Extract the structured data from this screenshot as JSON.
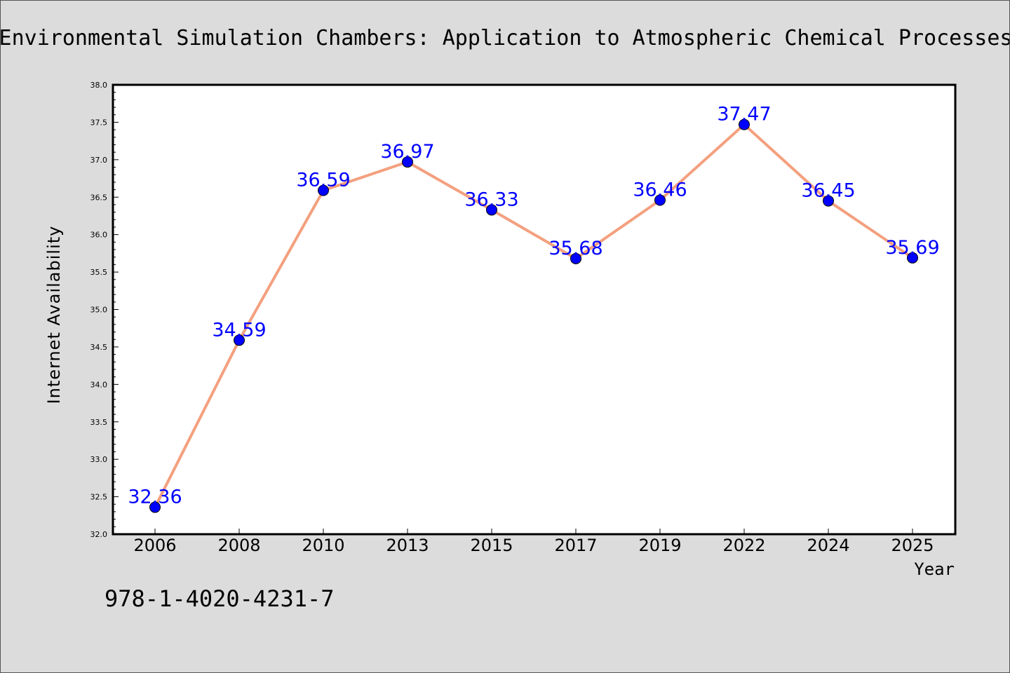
{
  "footer": {
    "isbn": "978-1-4020-4231-7"
  },
  "colors": {
    "background": "#dcdcdc",
    "plot_background": "#ffffff",
    "line": "#f4a07f",
    "marker": "#0000ff",
    "data_label": "#0000ff"
  },
  "chart_data": {
    "type": "line",
    "title": "Environmental Simulation Chambers: Application to Atmospheric Chemical Processes",
    "xlabel": "Year",
    "ylabel": "Internet Availability",
    "categories": [
      "2006",
      "2008",
      "2010",
      "2013",
      "2015",
      "2017",
      "2019",
      "2022",
      "2024",
      "2025"
    ],
    "series": [
      {
        "values": [
          32.36,
          34.59,
          36.59,
          36.97,
          36.33,
          35.68,
          36.46,
          37.47,
          36.45,
          35.69
        ]
      }
    ],
    "data_labels": [
      "32.36",
      "34.59",
      "36.59",
      "36.97",
      "36.33",
      "35.68",
      "36.46",
      "37.47",
      "36.45",
      "35.69"
    ],
    "ylim": [
      32.0,
      38.0
    ],
    "yticks": [
      "32.0",
      "32.5",
      "33.0",
      "33.5",
      "34.0",
      "34.5",
      "35.0",
      "35.5",
      "36.0",
      "36.5",
      "37.0",
      "37.5",
      "38.0"
    ],
    "grid": false,
    "legend": "none",
    "marker": "circle"
  }
}
